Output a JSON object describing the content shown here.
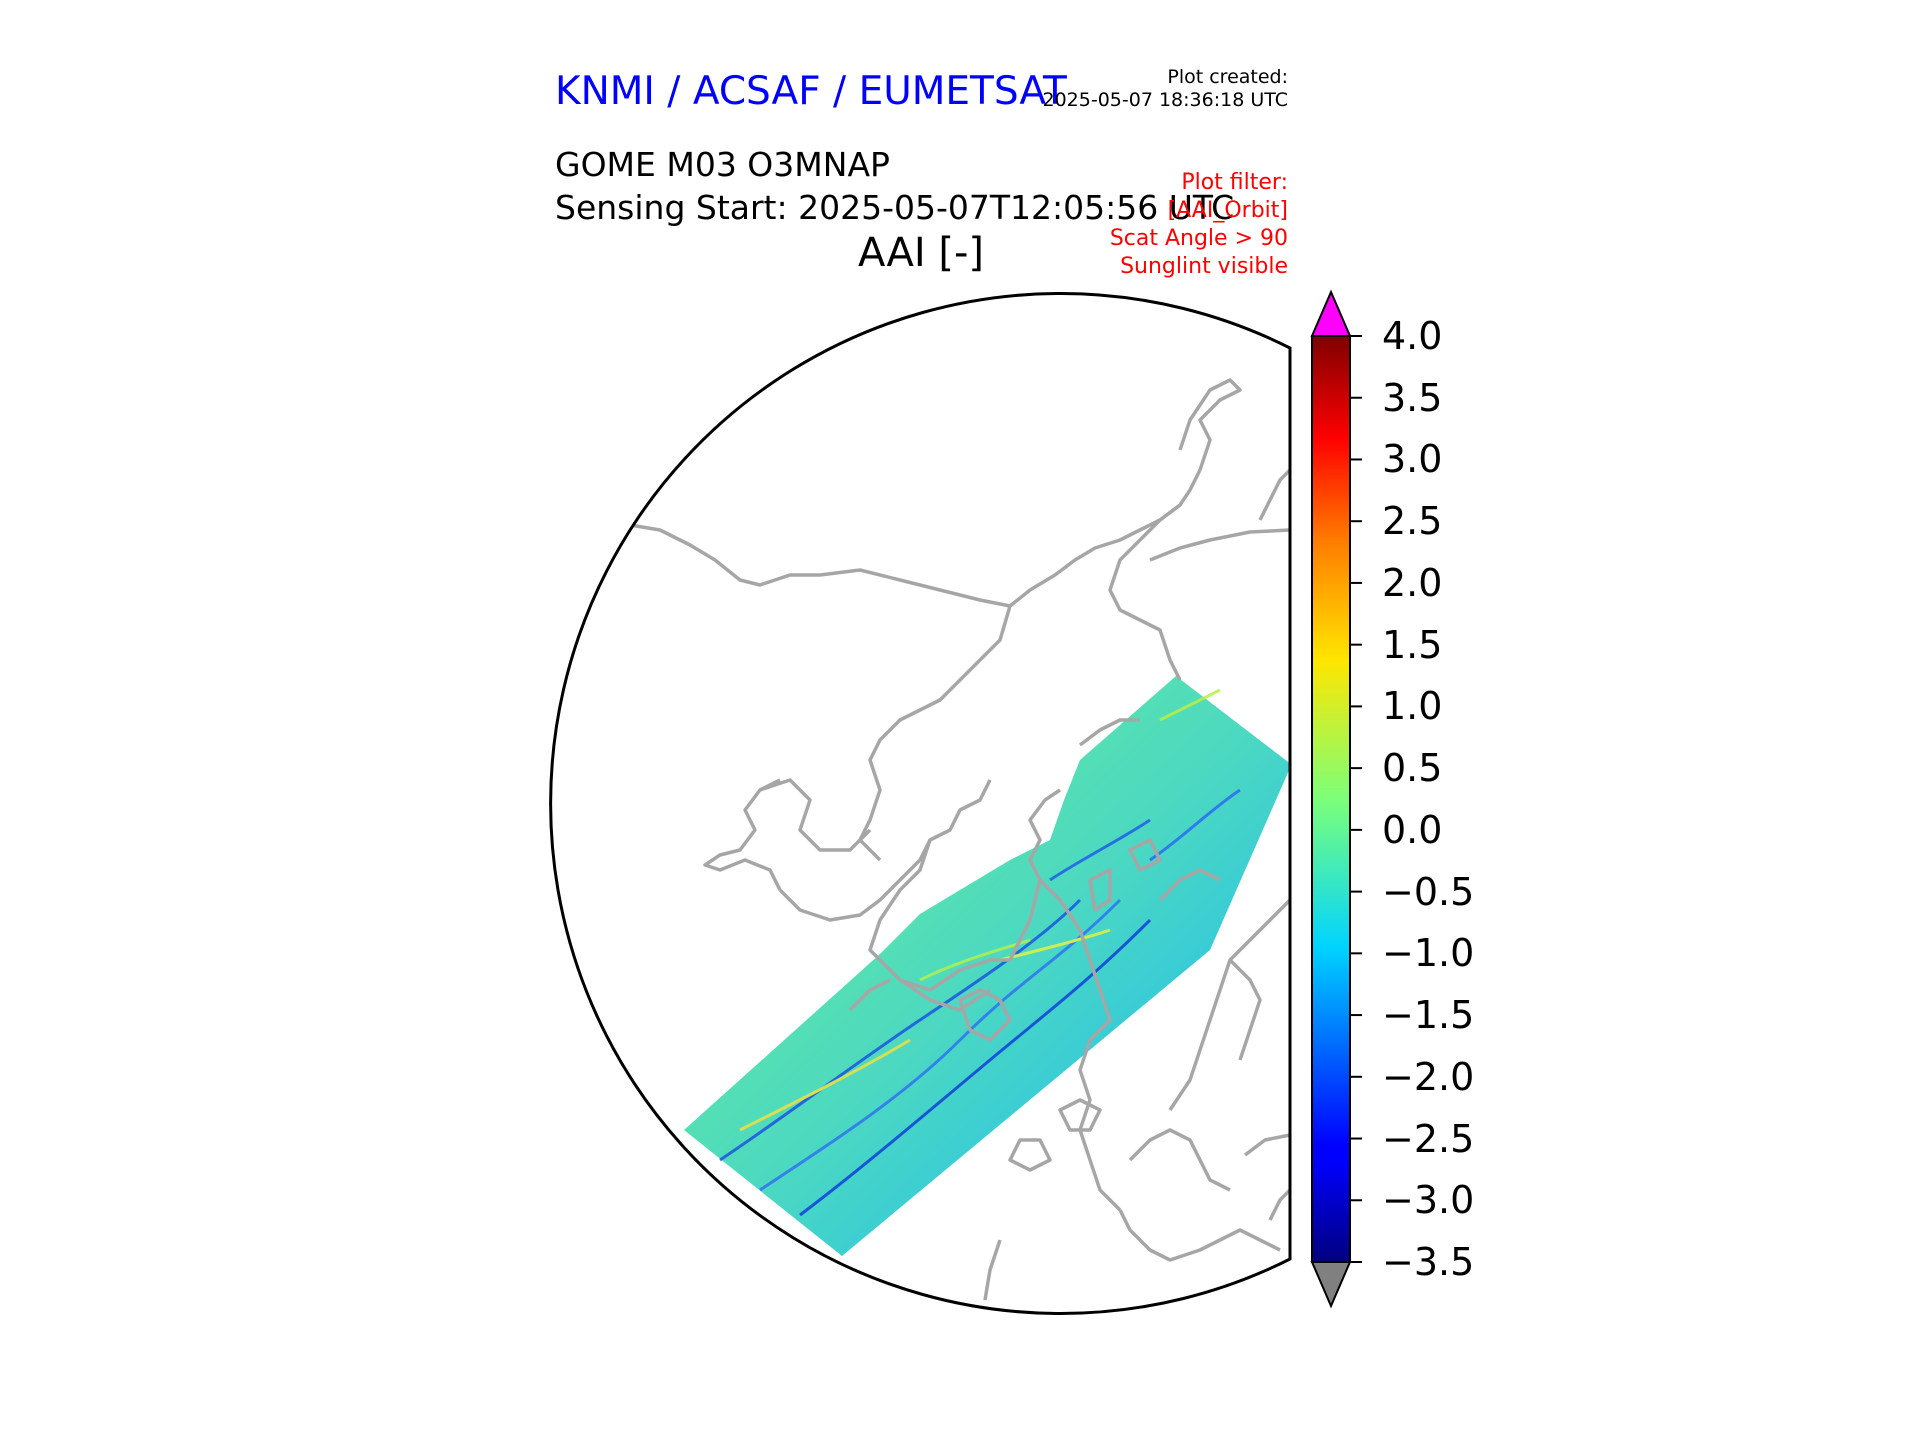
{
  "header": {
    "organization": "KNMI / ACSAF / EUMETSAT",
    "plot_created_label": "Plot created:",
    "plot_created_time": "2025-05-07 18:36:18 UTC",
    "product": "GOME M03 O3MNAP",
    "sensing_start": "Sensing Start: 2025-05-07T12:05:56 UTC",
    "variable": "AAI [-]"
  },
  "filter": {
    "lines": [
      "Plot filter:",
      "[AAI_Orbit]",
      "Scat Angle > 90",
      "Sunglint visible"
    ]
  },
  "colorbar": {
    "min": -3.5,
    "max": 4.0,
    "ticks": [
      "4.0",
      "3.5",
      "3.0",
      "2.5",
      "2.0",
      "1.5",
      "1.0",
      "0.5",
      "0.0",
      "−0.5",
      "−1.0",
      "−1.5",
      "−2.0",
      "−2.5",
      "−3.0",
      "−3.5"
    ],
    "over_color": "#ff00ff",
    "under_color": "#808080",
    "colormap": "jet"
  },
  "colors": {
    "coastline": "#a6a6a6",
    "title_blue": "#0000ff",
    "filter_red": "#ff0000"
  }
}
